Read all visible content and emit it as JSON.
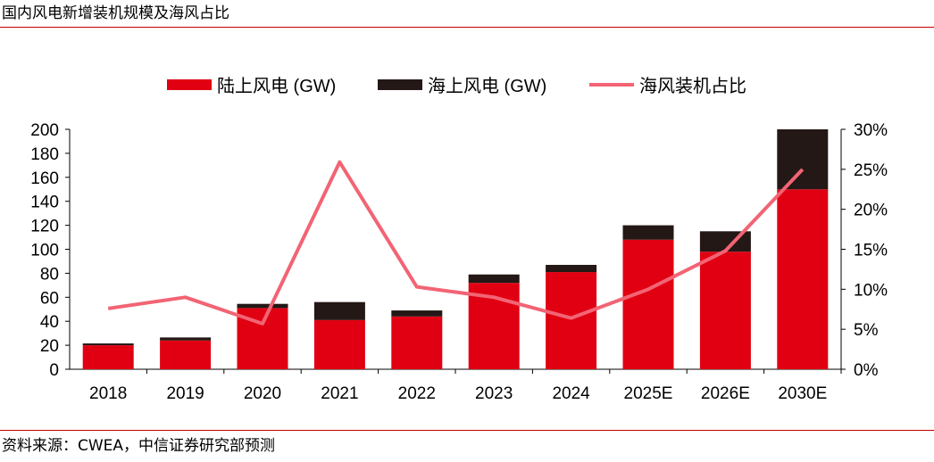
{
  "header": {
    "title": "国内风电新增装机规模及海风占比"
  },
  "footer": {
    "source": "资料来源：CWEA，中信证券研究部预测"
  },
  "colors": {
    "onshore": "#e00012",
    "offshore": "#231815",
    "ratio": "#f26474",
    "rule": "#c00000"
  },
  "chart_data": {
    "type": "bar",
    "stacked": true,
    "categories": [
      "2018",
      "2019",
      "2020",
      "2021",
      "2022",
      "2023",
      "2024",
      "2025E",
      "2026E",
      "2030E"
    ],
    "series": [
      {
        "name": "陆上风电 (GW)",
        "type": "bar",
        "axis": "left",
        "values": [
          20,
          24,
          51,
          41,
          44,
          72,
          81,
          108,
          98,
          150
        ]
      },
      {
        "name": "海上风电 (GW)",
        "type": "bar",
        "axis": "left",
        "values": [
          1.5,
          2.5,
          3.5,
          15,
          5,
          7,
          6,
          12,
          17,
          50
        ]
      },
      {
        "name": "海风装机占比",
        "type": "line",
        "axis": "right",
        "values": [
          7.6,
          9.0,
          5.7,
          25.9,
          10.3,
          9.0,
          6.4,
          10.0,
          14.8,
          25.0
        ]
      }
    ],
    "y_left": {
      "min": 0,
      "max": 200,
      "ticks": [
        "0",
        "20",
        "40",
        "60",
        "80",
        "100",
        "120",
        "140",
        "160",
        "180",
        "200"
      ]
    },
    "y_right": {
      "min": 0,
      "max": 30,
      "ticks": [
        "0%",
        "5%",
        "10%",
        "15%",
        "20%",
        "25%",
        "30%"
      ]
    },
    "legend_position": "top-center",
    "grid": false
  }
}
